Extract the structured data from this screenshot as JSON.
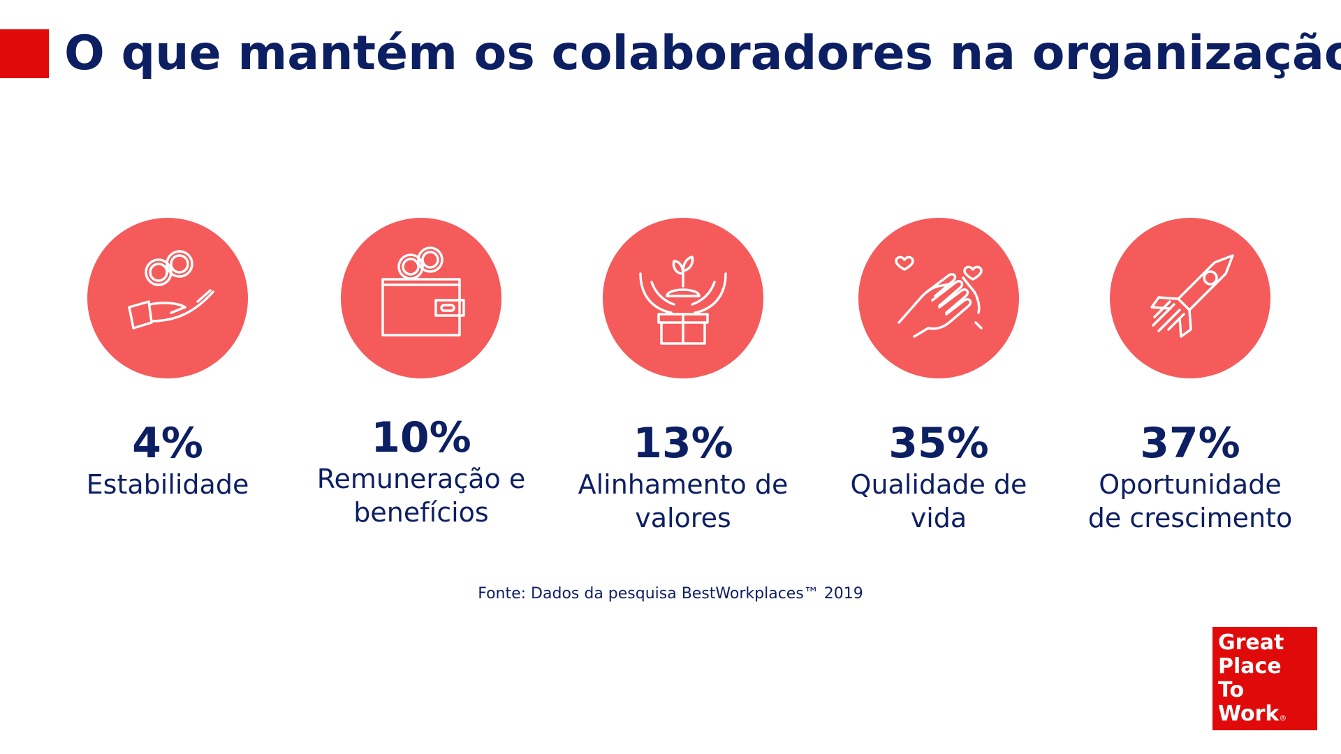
{
  "header": {
    "title": "O que mantém os colaboradores na organização?"
  },
  "items": [
    {
      "icon": "hand-coins-icon",
      "percent": "4%",
      "label": "Estabilidade"
    },
    {
      "icon": "wallet-coins-icon",
      "percent": "10%",
      "label": "Remuneração e\nbenefícios"
    },
    {
      "icon": "hands-plant-gift-icon",
      "percent": "13%",
      "label": "Alinhamento de\nvalores"
    },
    {
      "icon": "handshake-hearts-icon",
      "percent": "35%",
      "label": "Qualidade de\nvida"
    },
    {
      "icon": "rocket-icon",
      "percent": "37%",
      "label": "Oportunidade\nde crescimento"
    }
  ],
  "source": "Fonte: Dados da pesquisa BestWorkplaces™ 2019",
  "logo": {
    "line1": "Great",
    "line2": "Place",
    "line3": "To",
    "line4": "Work",
    "reg": "®"
  },
  "colors": {
    "brand_red": "#e10a0a",
    "circle": "#f55b5b",
    "navy": "#0d1f63"
  }
}
